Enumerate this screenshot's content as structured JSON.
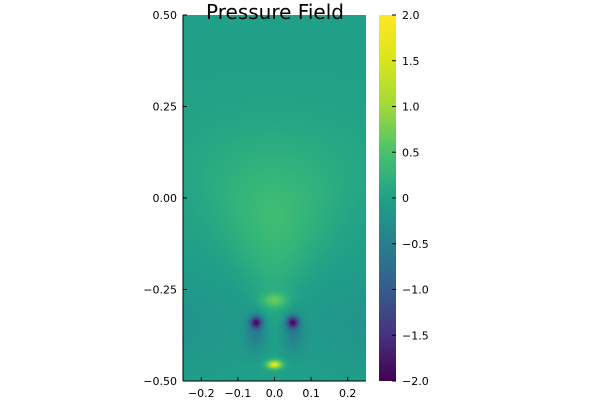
{
  "chart_data": {
    "type": "heatmap",
    "title": "Pressure Field",
    "xlabel": "",
    "ylabel": "",
    "xlim": [
      -0.25,
      0.25
    ],
    "ylim": [
      -0.5,
      0.5
    ],
    "x_ticks": [
      -0.2,
      -0.1,
      0.0,
      0.1,
      0.2
    ],
    "x_tick_labels": [
      "−0.2",
      "−0.1",
      "0.0",
      "0.1",
      "0.2"
    ],
    "y_ticks": [
      -0.5,
      -0.25,
      0.0,
      0.25,
      0.5
    ],
    "y_tick_labels": [
      "−0.50",
      "−0.25",
      "0.00",
      "0.25",
      "0.50"
    ],
    "colorbar": {
      "colormap": "viridis",
      "range": [
        -2.0,
        2.0
      ],
      "ticks": [
        -2.0,
        -1.5,
        -1.0,
        -0.5,
        0,
        0.5,
        1.0,
        1.5,
        2.0
      ],
      "tick_labels": [
        "−2.0",
        "−1.5",
        "−1.0",
        "−0.5",
        "0",
        "0.5",
        "1.0",
        "1.5",
        "2.0"
      ]
    },
    "field_features": {
      "background_value": 0.25,
      "upper_fan": {
        "peak_value": 0.75,
        "center": [
          0.0,
          -0.05
        ]
      },
      "low_spots": [
        {
          "x": -0.05,
          "y": -0.34,
          "value": -1.6
        },
        {
          "x": 0.05,
          "y": -0.34,
          "value": -1.6
        }
      ],
      "high_spots": [
        {
          "x": 0.0,
          "y": -0.455,
          "value": 1.9
        },
        {
          "x": 0.0,
          "y": -0.28,
          "value": 0.9
        }
      ]
    },
    "grid": false,
    "legend": "none"
  }
}
